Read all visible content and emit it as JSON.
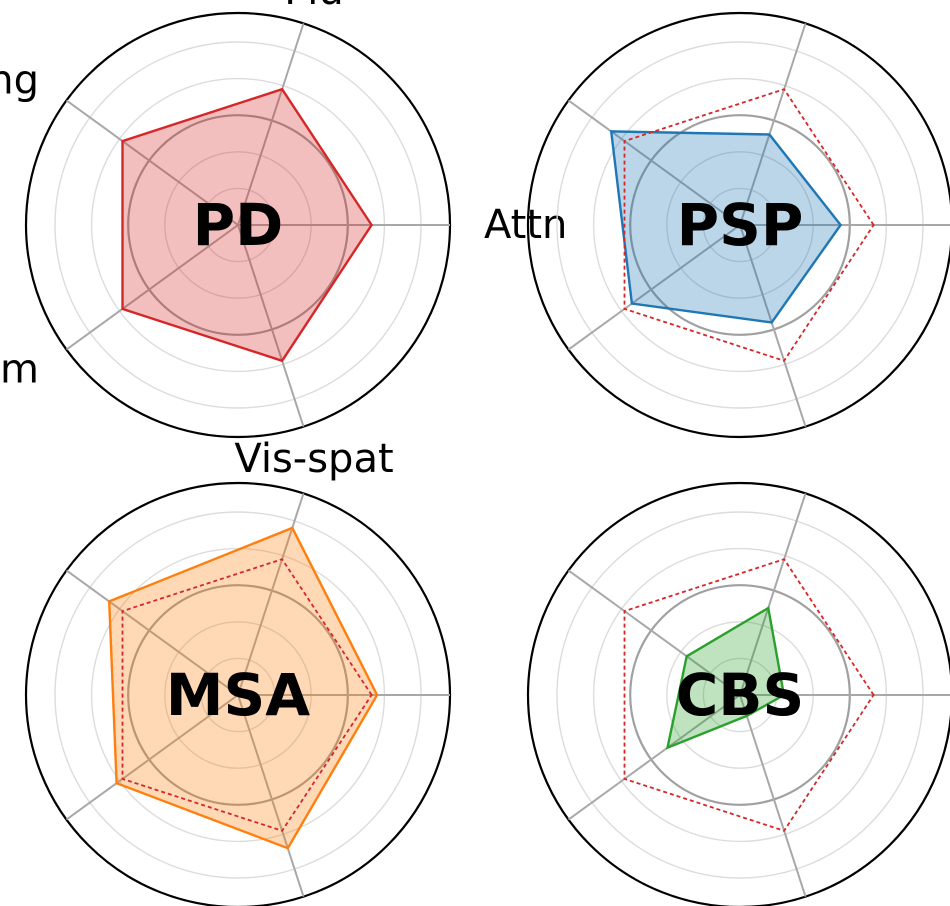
{
  "chart_data": [
    {
      "type": "radar",
      "title": "PD",
      "axes": [
        "Attn",
        "Flu",
        "Lang",
        "Mem",
        "Vis-spat"
      ],
      "range": [
        0,
        1
      ],
      "color": "#d62728",
      "values": [
        0.73,
        0.78,
        0.78,
        0.78,
        0.78
      ],
      "show_axis_labels": true,
      "reference": null
    },
    {
      "type": "radar",
      "title": "PSP",
      "axes": [
        "Attn",
        "Flu",
        "Lang",
        "Mem",
        "Vis-spat"
      ],
      "range": [
        0,
        1
      ],
      "color": "#1f77b4",
      "values": [
        0.55,
        0.52,
        0.87,
        0.73,
        0.56
      ],
      "show_axis_labels": false,
      "reference": {
        "color": "#d62728",
        "values": [
          0.73,
          0.78,
          0.78,
          0.78,
          0.78
        ]
      }
    },
    {
      "type": "radar",
      "title": "MSA",
      "axes": [
        "Attn",
        "Flu",
        "Lang",
        "Mem",
        "Vis-spat"
      ],
      "range": [
        0,
        1
      ],
      "color": "#ff7f0e",
      "values": [
        0.76,
        0.96,
        0.87,
        0.82,
        0.88
      ],
      "show_axis_labels": false,
      "reference": {
        "color": "#d62728",
        "values": [
          0.73,
          0.78,
          0.78,
          0.78,
          0.78
        ]
      }
    },
    {
      "type": "radar",
      "title": "CBS",
      "axes": [
        "Attn",
        "Flu",
        "Lang",
        "Mem",
        "Vis-spat"
      ],
      "range": [
        0,
        1
      ],
      "color": "#2ca02c",
      "values": [
        0.24,
        0.5,
        0.36,
        0.49,
        0.12
      ],
      "show_axis_labels": false,
      "reference": {
        "color": "#d62728",
        "values": [
          0.73,
          0.78,
          0.78,
          0.78,
          0.78
        ]
      }
    }
  ]
}
